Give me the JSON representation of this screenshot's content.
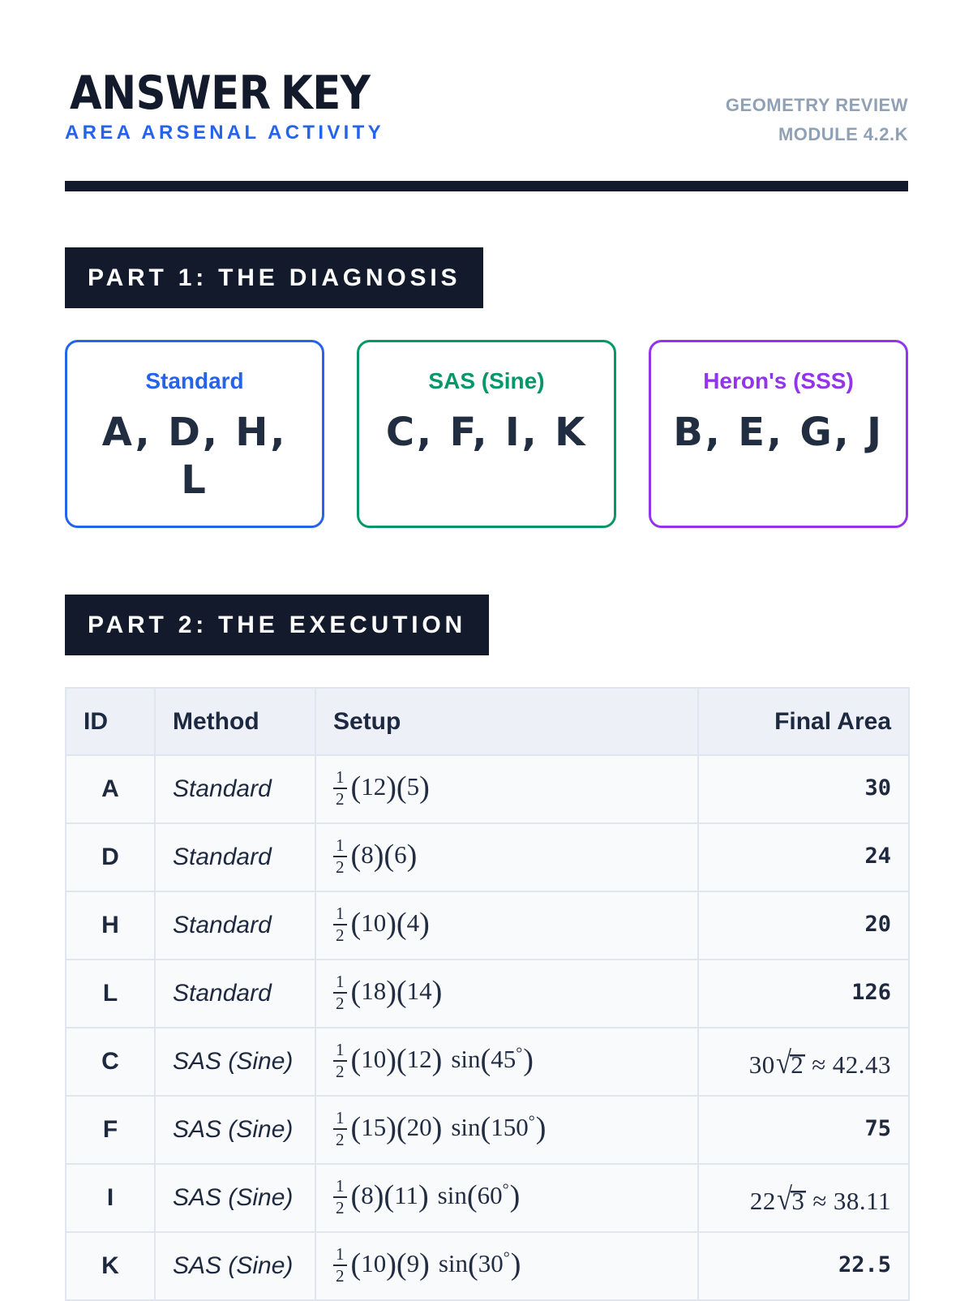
{
  "header": {
    "title": "ANSWER KEY",
    "subtitle": "AREA ARSENAL ACTIVITY",
    "meta_line1": "GEOMETRY REVIEW",
    "meta_line2": "MODULE 4.2.K"
  },
  "part1": {
    "banner": "PART 1: THE DIAGNOSIS",
    "cards": [
      {
        "title": "Standard",
        "letters": "A, D, H, L",
        "color": "#2563eb"
      },
      {
        "title": "SAS (Sine)",
        "letters": "C, F, I, K",
        "color": "#059669"
      },
      {
        "title": "Heron's (SSS)",
        "letters": "B, E, G, J",
        "color": "#9333ea"
      }
    ]
  },
  "part2": {
    "banner": "PART 2: THE EXECUTION",
    "table": {
      "columns": [
        "ID",
        "Method",
        "Setup",
        "Final Area"
      ],
      "rows": [
        {
          "id": "A",
          "method": "Standard",
          "setup": "1/2(12)(5)",
          "final": "30"
        },
        {
          "id": "D",
          "method": "Standard",
          "setup": "1/2(8)(6)",
          "final": "24"
        },
        {
          "id": "H",
          "method": "Standard",
          "setup": "1/2(10)(4)",
          "final": "20"
        },
        {
          "id": "L",
          "method": "Standard",
          "setup": "1/2(18)(14)",
          "final": "126"
        },
        {
          "id": "C",
          "method": "SAS (Sine)",
          "setup": "1/2(10)(12) sin(45°)",
          "final": "30√2 ≈ 42.43"
        },
        {
          "id": "F",
          "method": "SAS (Sine)",
          "setup": "1/2(15)(20) sin(150°)",
          "final": "75"
        },
        {
          "id": "I",
          "method": "SAS (Sine)",
          "setup": "1/2(8)(11) sin(60°)",
          "final": "22√3 ≈ 38.11"
        },
        {
          "id": "K",
          "method": "SAS (Sine)",
          "setup": "1/2(10)(9) sin(30°)",
          "final": "22.5"
        }
      ]
    }
  },
  "colors": {
    "ink": "#121a2c",
    "accent_blue": "#2563eb",
    "accent_green": "#059669",
    "accent_purple": "#9333ea",
    "muted": "#90a0b5",
    "table_header_bg": "#edf1f7",
    "table_row_bg": "#f8fafc",
    "table_border": "#dfe6f0"
  }
}
